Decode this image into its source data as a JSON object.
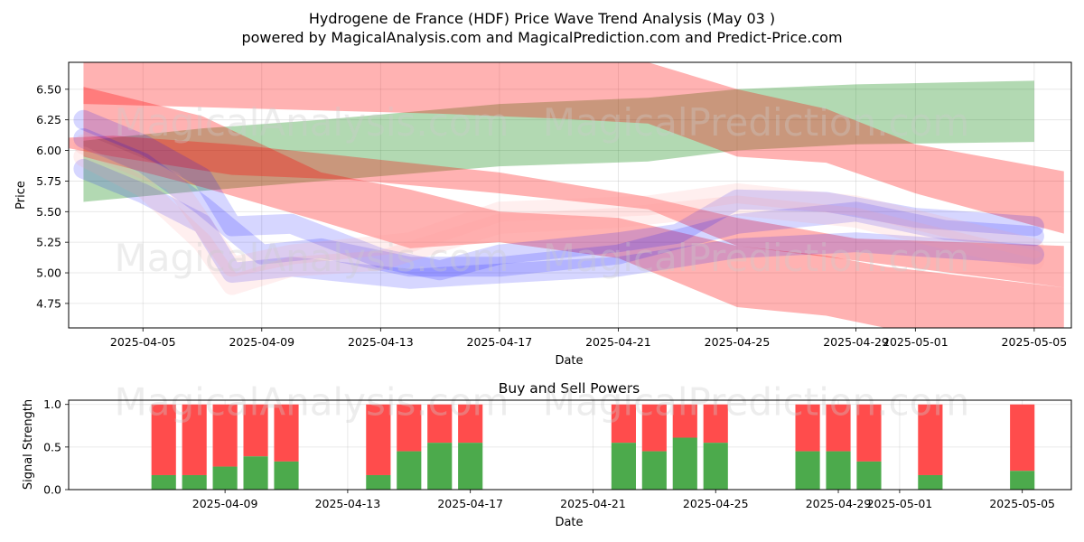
{
  "chart_data": [
    {
      "type": "area",
      "title_line1": "Hydrogene de France (HDF) Price Wave Trend Analysis (May 03 )",
      "title_line2": "powered by MagicalAnalysis.com and MagicalPrediction.com and Predict-Price.com",
      "xlabel": "Date",
      "ylabel": "Price",
      "watermarks": [
        "MagicalAnalysis.com",
        "MagicalPrediction.com",
        "MagicalAnalysis.com",
        "MagicalPrediction.com"
      ],
      "x_range": [
        "2025-04-02",
        "2025-05-06"
      ],
      "ylim": [
        4.55,
        6.72
      ],
      "x_ticks": [
        "2025-04-05",
        "2025-04-09",
        "2025-04-13",
        "2025-04-17",
        "2025-04-21",
        "2025-04-25",
        "2025-04-29",
        "2025-05-01",
        "2025-05-05"
      ],
      "y_ticks": [
        "4.75",
        "5.00",
        "5.25",
        "5.50",
        "5.75",
        "6.00",
        "6.25",
        "6.50"
      ],
      "grid": true,
      "colors": {
        "red": "#ff0000",
        "green": "#008000",
        "blue": "#0000ff",
        "pink": "#ff9e9e"
      },
      "bands": [
        {
          "color": "green",
          "opacity": 0.3,
          "points": [
            [
              "2025-04-03",
              5.83,
              6.08
            ],
            [
              "2025-04-07",
              5.95,
              6.18
            ],
            [
              "2025-04-11",
              6.03,
              6.25
            ],
            [
              "2025-04-17",
              6.12,
              6.38
            ],
            [
              "2025-04-22",
              6.17,
              6.43
            ],
            [
              "2025-04-25",
              6.25,
              6.5
            ],
            [
              "2025-04-29",
              6.3,
              6.54
            ],
            [
              "2025-05-05",
              6.33,
              6.57
            ]
          ],
          "lower": [
            5.58,
            5.67,
            5.75,
            5.87,
            5.91,
            6.0,
            6.05,
            6.07
          ]
        },
        {
          "color": "red",
          "opacity": 0.3,
          "points": [
            [
              "2025-04-03",
              6.38,
              6.72
            ],
            [
              "2025-04-09",
              6.34,
              6.72
            ],
            [
              "2025-04-15",
              6.3,
              6.72
            ],
            [
              "2025-04-19",
              6.26,
              6.72
            ],
            [
              "2025-04-22",
              6.22,
              6.72
            ],
            [
              "2025-04-25",
              5.95,
              6.5
            ],
            [
              "2025-04-28",
              5.9,
              6.34
            ],
            [
              "2025-05-01",
              5.65,
              6.05
            ],
            [
              "2025-05-06",
              5.32,
              5.83
            ]
          ]
        },
        {
          "color": "red",
          "opacity": 0.3,
          "points": [
            [
              "2025-04-02",
              6.04,
              6.1
            ],
            [
              "2025-04-04",
              5.95,
              6.12
            ],
            [
              "2025-04-08",
              5.8,
              6.05
            ],
            [
              "2025-04-12",
              5.76,
              5.95
            ],
            [
              "2025-04-17",
              5.65,
              5.82
            ],
            [
              "2025-04-22",
              5.52,
              5.62
            ],
            [
              "2025-04-25",
              5.22,
              5.45
            ],
            [
              "2025-04-29",
              5.1,
              5.28
            ],
            [
              "2025-05-06",
              4.88,
              5.22
            ]
          ]
        },
        {
          "color": "red",
          "opacity": 0.3,
          "points": [
            [
              "2025-04-03",
              5.95,
              6.52
            ],
            [
              "2025-04-07",
              5.7,
              6.28
            ],
            [
              "2025-04-11",
              5.42,
              5.82
            ],
            [
              "2025-04-14",
              5.2,
              5.68
            ],
            [
              "2025-04-17",
              5.25,
              5.5
            ],
            [
              "2025-04-21",
              5.12,
              5.45
            ],
            [
              "2025-04-25",
              4.72,
              5.22
            ],
            [
              "2025-04-28",
              4.65,
              5.14
            ],
            [
              "2025-04-30",
              4.55,
              5.05
            ],
            [
              "2025-05-06",
              4.52,
              4.88
            ]
          ]
        }
      ],
      "wave_lines": [
        {
          "color": "blue",
          "values": [
            [
              "2025-04-03",
              6.25
            ],
            [
              "2025-04-05",
              6.05
            ],
            [
              "2025-04-07",
              5.78
            ],
            [
              "2025-04-08",
              5.38
            ],
            [
              "2025-04-10",
              5.4
            ],
            [
              "2025-04-13",
              5.12
            ],
            [
              "2025-04-15",
              5.02
            ],
            [
              "2025-04-17",
              5.15
            ],
            [
              "2025-04-21",
              5.25
            ],
            [
              "2025-04-23",
              5.32
            ],
            [
              "2025-04-25",
              5.6
            ],
            [
              "2025-04-28",
              5.58
            ],
            [
              "2025-05-01",
              5.45
            ],
            [
              "2025-05-05",
              5.38
            ]
          ]
        },
        {
          "color": "blue",
          "values": [
            [
              "2025-04-03",
              6.1
            ],
            [
              "2025-04-05",
              5.9
            ],
            [
              "2025-04-07",
              5.55
            ],
            [
              "2025-04-09",
              5.15
            ],
            [
              "2025-04-11",
              5.2
            ],
            [
              "2025-04-14",
              5.05
            ],
            [
              "2025-04-17",
              5.05
            ],
            [
              "2025-04-21",
              5.15
            ],
            [
              "2025-04-25",
              5.4
            ],
            [
              "2025-04-29",
              5.5
            ],
            [
              "2025-05-02",
              5.35
            ],
            [
              "2025-05-05",
              5.3
            ]
          ]
        },
        {
          "color": "blue",
          "values": [
            [
              "2025-04-03",
              5.85
            ],
            [
              "2025-04-05",
              5.65
            ],
            [
              "2025-04-07",
              5.4
            ],
            [
              "2025-04-08",
              5.0
            ],
            [
              "2025-04-10",
              5.05
            ],
            [
              "2025-04-14",
              4.95
            ],
            [
              "2025-04-16",
              4.98
            ],
            [
              "2025-04-21",
              5.05
            ],
            [
              "2025-04-25",
              5.2
            ],
            [
              "2025-04-29",
              5.25
            ],
            [
              "2025-05-05",
              5.15
            ]
          ]
        },
        {
          "color": "pink",
          "values": [
            [
              "2025-04-03",
              5.95
            ],
            [
              "2025-04-05",
              5.7
            ],
            [
              "2025-04-07",
              5.25
            ],
            [
              "2025-04-08",
              4.9
            ],
            [
              "2025-04-10",
              5.05
            ],
            [
              "2025-04-13",
              5.1
            ],
            [
              "2025-04-17",
              5.4
            ],
            [
              "2025-04-21",
              5.45
            ],
            [
              "2025-04-25",
              5.55
            ],
            [
              "2025-04-29",
              5.45
            ],
            [
              "2025-05-05",
              5.1
            ]
          ]
        },
        {
          "color": "pink",
          "values": [
            [
              "2025-04-03",
              6.05
            ],
            [
              "2025-04-06",
              5.75
            ],
            [
              "2025-04-08",
              5.05
            ],
            [
              "2025-04-10",
              5.15
            ],
            [
              "2025-04-14",
              5.25
            ],
            [
              "2025-04-17",
              5.5
            ],
            [
              "2025-04-22",
              5.55
            ],
            [
              "2025-04-25",
              5.65
            ],
            [
              "2025-04-29",
              5.55
            ],
            [
              "2025-05-05",
              5.2
            ]
          ]
        }
      ]
    },
    {
      "type": "bar",
      "title": "Buy and Sell Powers",
      "xlabel": "Date",
      "ylabel": "Signal Strength",
      "x_range": [
        "2025-04-04",
        "2025-05-06"
      ],
      "ylim": [
        0,
        1.05
      ],
      "x_ticks": [
        "2025-04-09",
        "2025-04-13",
        "2025-04-17",
        "2025-04-21",
        "2025-04-25",
        "2025-04-29",
        "2025-05-01",
        "2025-05-05"
      ],
      "y_ticks": [
        "0.0",
        "0.5",
        "1.0"
      ],
      "grid": true,
      "colors": {
        "buy": "#4caa4c",
        "sell": "#ff4c4c"
      },
      "categories": [
        "2025-04-07",
        "2025-04-08",
        "2025-04-09",
        "2025-04-10",
        "2025-04-11",
        "2025-04-14",
        "2025-04-15",
        "2025-04-16",
        "2025-04-17",
        "2025-04-22",
        "2025-04-23",
        "2025-04-24",
        "2025-04-25",
        "2025-04-28",
        "2025-04-29",
        "2025-04-30",
        "2025-05-02",
        "2025-05-05"
      ],
      "series": [
        {
          "values": [
            0.17,
            0.17,
            0.27,
            0.39,
            0.33,
            0.17,
            0.45,
            0.55,
            0.55,
            0.55,
            0.45,
            0.61,
            0.55,
            0.45,
            0.45,
            0.33,
            0.17,
            0.22
          ]
        },
        {
          "values": [
            1,
            1,
            1,
            1,
            1,
            1,
            1,
            1,
            1,
            1,
            1,
            1,
            1,
            1,
            1,
            1,
            1,
            1
          ]
        }
      ]
    }
  ]
}
